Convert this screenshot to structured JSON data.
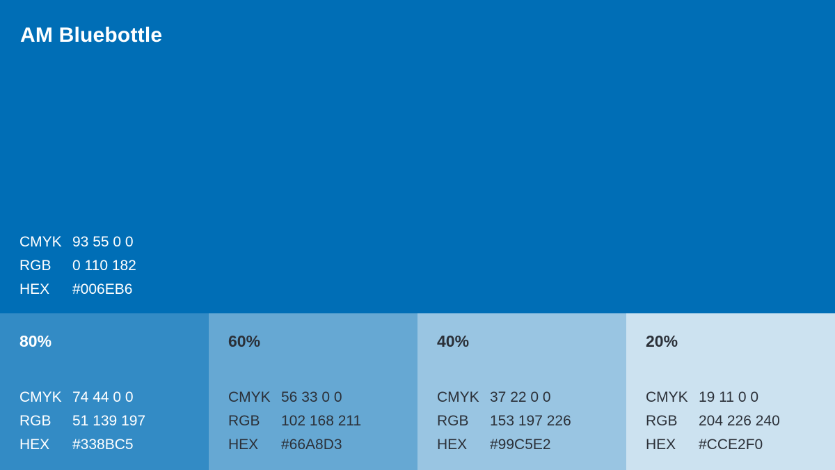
{
  "main": {
    "title": "AM Bluebottle",
    "color": "#006EB6",
    "text_color": "#FFFFFF",
    "specs": [
      {
        "key": "CMYK",
        "value": "93 55 0 0"
      },
      {
        "key": "RGB",
        "value": "0 110 182"
      },
      {
        "key": "HEX",
        "value": "#006EB6"
      }
    ]
  },
  "tints": [
    {
      "label": "80%",
      "color": "#338BC5",
      "text_color": "#FFFFFF",
      "specs": [
        {
          "key": "CMYK",
          "value": "74 44 0 0"
        },
        {
          "key": "RGB",
          "value": "51 139 197"
        },
        {
          "key": "HEX",
          "value": "#338BC5"
        }
      ]
    },
    {
      "label": "60%",
      "color": "#66A8D3",
      "text_color": "#2B3038",
      "specs": [
        {
          "key": "CMYK",
          "value": "56 33 0 0"
        },
        {
          "key": "RGB",
          "value": "102 168 211"
        },
        {
          "key": "HEX",
          "value": "#66A8D3"
        }
      ]
    },
    {
      "label": "40%",
      "color": "#99C5E2",
      "text_color": "#2B3038",
      "specs": [
        {
          "key": "CMYK",
          "value": "37 22 0 0"
        },
        {
          "key": "RGB",
          "value": "153 197 226"
        },
        {
          "key": "HEX",
          "value": "#99C5E2"
        }
      ]
    },
    {
      "label": "20%",
      "color": "#CCE2F0",
      "text_color": "#2B3038",
      "specs": [
        {
          "key": "CMYK",
          "value": "19 11 0 0"
        },
        {
          "key": "RGB",
          "value": "204 226 240"
        },
        {
          "key": "HEX",
          "value": "#CCE2F0"
        }
      ]
    }
  ]
}
